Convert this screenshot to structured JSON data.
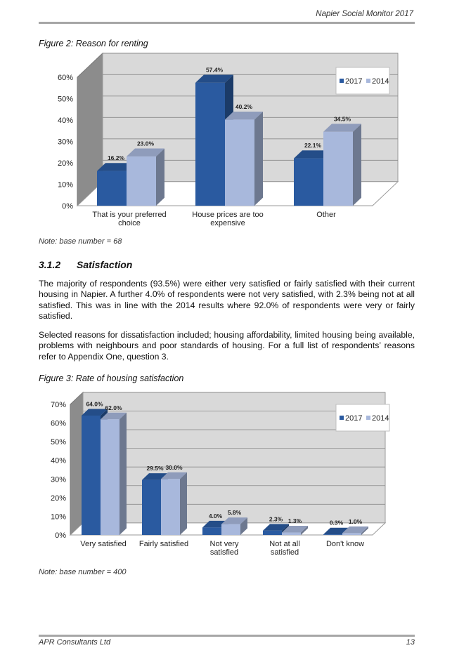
{
  "header": {
    "title": "Napier Social Monitor 2017"
  },
  "figure2": {
    "title": "Figure 2:  Reason for renting",
    "note": "Note: base number = 68"
  },
  "section": {
    "number": "3.1.2",
    "title": "Satisfaction"
  },
  "paragraphs": {
    "p1": "The majority of respondents (93.5%) were either very satisfied or fairly satisfied with their current housing in Napier.  A further 4.0% of respondents were not very satisfied, with 2.3% being not at all satisfied.  This was in line with the 2014 results where 92.0% of respondents were very or fairly satisfied.",
    "p2": "Selected reasons for dissatisfaction included; housing affordability, limited housing being available, problems with neighbours and poor standards of housing.  For a full list of respondents’ reasons refer to Appendix One, question 3."
  },
  "figure3": {
    "title": "Figure 3:  Rate of housing satisfaction",
    "note": "Note: base number = 400"
  },
  "footer": {
    "left": "APR Consultants Ltd",
    "page": "13"
  },
  "colors": {
    "series2017": "#2a5aa0",
    "series2014": "#a8b8dc",
    "wall": "#d9d9d9"
  },
  "chart_data": [
    {
      "type": "bar",
      "title": "Figure 2:  Reason for renting",
      "categories": [
        [
          "That is your preferred",
          "choice"
        ],
        [
          "House prices are too",
          "expensive"
        ],
        [
          "Other"
        ]
      ],
      "series": [
        {
          "name": "2017",
          "values": [
            16.2,
            57.4,
            22.1
          ],
          "labels": [
            "16.2%",
            "57.4%",
            "22.1%"
          ]
        },
        {
          "name": "2014",
          "values": [
            23.0,
            40.2,
            34.5
          ],
          "labels": [
            "23.0%",
            "40.2%",
            "34.5%"
          ]
        }
      ],
      "yticks": [
        "0%",
        "10%",
        "20%",
        "30%",
        "40%",
        "50%",
        "60%"
      ],
      "ylim": [
        0,
        60
      ],
      "legend": "top-right",
      "grid": true
    },
    {
      "type": "bar",
      "title": "Figure 3:  Rate of housing satisfaction",
      "categories": [
        [
          "Very satisfied"
        ],
        [
          "Fairly satisfied"
        ],
        [
          "Not very",
          "satisfied"
        ],
        [
          "Not at all",
          "satisfied"
        ],
        [
          "Don't know"
        ]
      ],
      "series": [
        {
          "name": "2017",
          "values": [
            64.0,
            29.5,
            4.0,
            2.3,
            0.3
          ],
          "labels": [
            "64.0%",
            "29.5%",
            "4.0%",
            "2.3%",
            "0.3%"
          ]
        },
        {
          "name": "2014",
          "values": [
            62.0,
            30.0,
            5.8,
            1.3,
            1.0
          ],
          "labels": [
            "62.0%",
            "30.0%",
            "5.8%",
            "1.3%",
            "1.0%"
          ]
        }
      ],
      "yticks": [
        "0%",
        "10%",
        "20%",
        "30%",
        "40%",
        "50%",
        "60%",
        "70%"
      ],
      "ylim": [
        0,
        70
      ],
      "legend": "top-right",
      "grid": true
    }
  ]
}
